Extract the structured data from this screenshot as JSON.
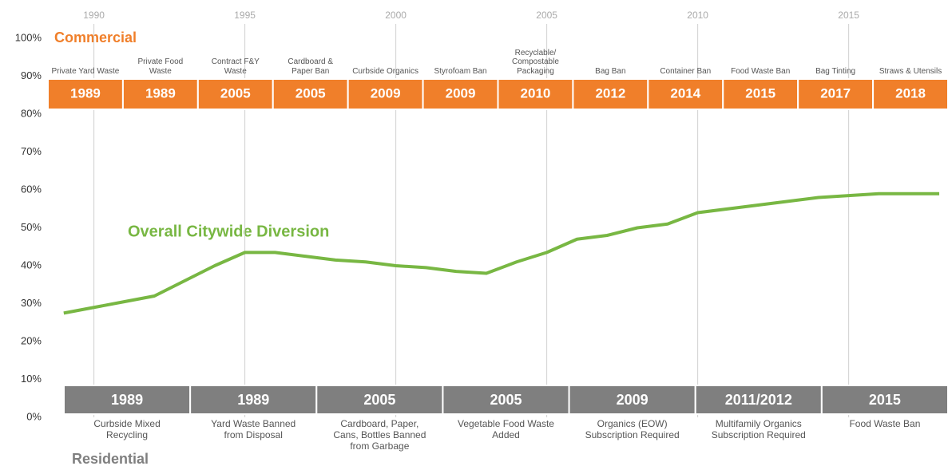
{
  "chart_data": {
    "type": "line",
    "x": [
      1989,
      1990,
      1991,
      1992,
      1993,
      1994,
      1995,
      1996,
      1997,
      1998,
      1999,
      2000,
      2001,
      2002,
      2003,
      2004,
      2005,
      2006,
      2007,
      2008,
      2009,
      2010,
      2011,
      2012,
      2013,
      2014,
      2015,
      2016,
      2017,
      2018
    ],
    "series": [
      {
        "name": "Overall Citywide Diversion",
        "color": "#78b743",
        "values": [
          27.5,
          29,
          30.5,
          32,
          36,
          40,
          43.5,
          43.5,
          42.5,
          41.5,
          41,
          40,
          39.5,
          38.5,
          38,
          41,
          43.5,
          47,
          48,
          50,
          51,
          54,
          55,
          56,
          57,
          58,
          58.5,
          59,
          59,
          59
        ]
      }
    ],
    "xlim": [
      1988,
      2018.2
    ],
    "xticks": [
      1990,
      1995,
      2000,
      2005,
      2010,
      2015
    ],
    "ylim": [
      0,
      100
    ],
    "yticks": [
      {
        "value": 0,
        "label": "0%"
      },
      {
        "value": 10,
        "label": "10%"
      },
      {
        "value": 20,
        "label": "20%"
      },
      {
        "value": 30,
        "label": "30%"
      },
      {
        "value": 40,
        "label": "40%"
      },
      {
        "value": 50,
        "label": "50%"
      },
      {
        "value": 60,
        "label": "60%"
      },
      {
        "value": 70,
        "label": "70%"
      },
      {
        "value": 80,
        "label": "80%"
      },
      {
        "value": 90,
        "label": "90%"
      },
      {
        "value": 100,
        "label": "100%"
      }
    ],
    "grid": true,
    "commercial": {
      "title": "Commercial",
      "color": "#f07f2a",
      "events": [
        {
          "year": "1989",
          "label": "Private Yard Waste"
        },
        {
          "year": "1989",
          "label": "Private Food Waste"
        },
        {
          "year": "2005",
          "label": "Contract F&Y Waste"
        },
        {
          "year": "2005",
          "label": "Cardboard & Paper Ban"
        },
        {
          "year": "2009",
          "label": "Curbside Organics"
        },
        {
          "year": "2009",
          "label": "Styrofoam Ban"
        },
        {
          "year": "2010",
          "label": "Recyclable/ Compostable Packaging"
        },
        {
          "year": "2012",
          "label": "Bag Ban"
        },
        {
          "year": "2014",
          "label": "Container Ban"
        },
        {
          "year": "2015",
          "label": "Food Waste Ban"
        },
        {
          "year": "2017",
          "label": "Bag Tinting"
        },
        {
          "year": "2018",
          "label": "Straws & Utensils"
        }
      ]
    },
    "residential": {
      "title": "Residential",
      "color": "#7f7f7f",
      "events": [
        {
          "year": "1989",
          "label": "Curbside Mixed Recycling"
        },
        {
          "year": "1989",
          "label": "Yard Waste Banned from Disposal"
        },
        {
          "year": "2005",
          "label": "Cardboard, Paper, Cans, Bottles Banned from Garbage"
        },
        {
          "year": "2005",
          "label": "Vegetable Food Waste Added"
        },
        {
          "year": "2009",
          "label": "Organics (EOW) Subscription Required"
        },
        {
          "year": "2011/2012",
          "label": "Multifamily Organics Subscription Required"
        },
        {
          "year": "2015",
          "label": "Food Waste Ban"
        }
      ]
    }
  }
}
